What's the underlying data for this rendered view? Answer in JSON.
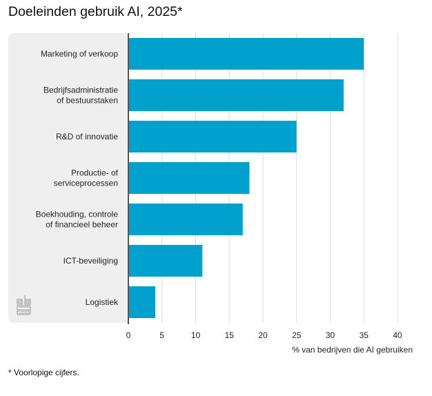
{
  "chart_data": {
    "type": "bar",
    "orientation": "horizontal",
    "title": "Doeleinden gebruik AI, 2025*",
    "categories": [
      [
        "Marketing of verkoop"
      ],
      [
        "Bedrijfsadministratie",
        "of bestuurstaken"
      ],
      [
        "R&D of innovatie"
      ],
      [
        "Productie- of",
        "serviceprocessen"
      ],
      [
        "Boekhouding, controle",
        "of financieel beheer"
      ],
      [
        "ICT-beveiliging"
      ],
      [
        "Logistiek"
      ]
    ],
    "values": [
      35,
      32,
      25,
      18,
      17,
      11,
      4
    ],
    "xlabel": "% van bedrijven die AI gebruiken",
    "ylabel": "",
    "xlim": [
      0,
      40
    ],
    "xticks": [
      0,
      5,
      10,
      15,
      20,
      25,
      30,
      35,
      40
    ],
    "grid": true,
    "bar_color": "#00a1cd",
    "footnote": "* Voorlopige cijfers."
  },
  "logo": {
    "name": "cbs"
  }
}
